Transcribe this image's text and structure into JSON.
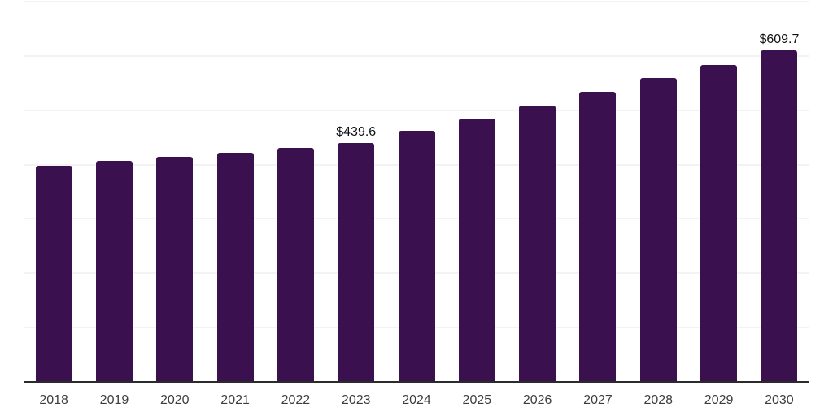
{
  "chart_data": {
    "type": "bar",
    "title": "",
    "xlabel": "",
    "ylabel": "",
    "categories": [
      "2018",
      "2019",
      "2020",
      "2021",
      "2022",
      "2023",
      "2024",
      "2025",
      "2026",
      "2027",
      "2028",
      "2029",
      "2030"
    ],
    "values": [
      398.0,
      406.9,
      414.2,
      421.3,
      430.7,
      439.6,
      461.5,
      485.3,
      508.6,
      534.4,
      558.7,
      583.4,
      609.7
    ],
    "data_labels": {
      "2023": "$439.6",
      "2030": "$609.7"
    },
    "ylim": [
      0,
      700
    ],
    "grid_step": 100,
    "grid": true,
    "legend_position": "none",
    "currency_prefix": "$"
  },
  "style": {
    "bar_color": "#3a114e",
    "gridline_color": "#f3f3f3",
    "axis_line_color": "#2b2b2b",
    "data_label_color": "#111111",
    "tick_label_color": "#3d3d3d",
    "background_color": "#ffffff"
  }
}
